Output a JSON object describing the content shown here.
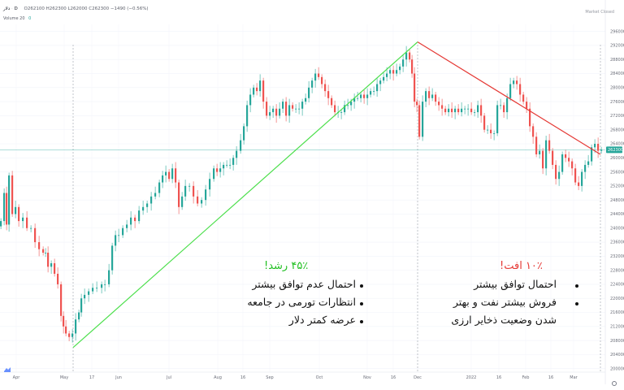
{
  "header": {
    "symbol": "دلار",
    "interval": "D",
    "ohlc": "O262100  H262300  L262000  C262300  −1490 (−0.56%)",
    "volume": "Volume 20",
    "volume_value": "0",
    "market_status": "Market Closed"
  },
  "price_badge": "262300",
  "annotations": {
    "left": {
      "title": "۴۵٪ رشد!",
      "title_color": "#22c022",
      "bullets": [
        "احتمال عدم توافق بیشتر",
        "انتظارات تورمی در جامعه",
        "عرضه کمتر دلار"
      ]
    },
    "right": {
      "title": "۱۰٪ افت!",
      "title_color": "#e53935",
      "bullets": [
        "احتمال توافق بیشتر",
        "فروش بیشتر نفت و بهتر",
        "شدن وضعیت ذخایر ارزی"
      ]
    }
  },
  "chart_data": {
    "type": "candlestick",
    "y_ticks": [
      296000,
      292000,
      288000,
      284000,
      280000,
      276000,
      272000,
      268000,
      264000,
      260000,
      256000,
      252000,
      248000,
      244000,
      240000,
      236000,
      232000,
      228000,
      224000,
      220000,
      216000,
      212000,
      208000,
      204000,
      200000
    ],
    "x_ticks": [
      "Apr",
      "May",
      "17",
      "Jun",
      "Jul",
      "Aug",
      "16",
      "Sep",
      "Oct",
      "Nov",
      "16",
      "Dec",
      "2022",
      "16",
      "Feb",
      "16",
      "Mar"
    ],
    "ylim": [
      199000,
      298000
    ],
    "current_price": 262300,
    "colors": {
      "up": "#26a69a",
      "down": "#ef5350",
      "rise_line": "#4cdf4c",
      "fall_line": "#e53935"
    },
    "rise_trendline": {
      "from_date": "May 2021",
      "from_price": 206000,
      "to_date": "Dec 2021",
      "to_price": 293000
    },
    "fall_trendline": {
      "from_date": "Dec 2021",
      "from_price": 293000,
      "to_date": "Mar 2022",
      "to_price": 261000
    },
    "path": [
      [
        0,
        242000
      ],
      [
        4,
        250000
      ],
      [
        7,
        241000
      ],
      [
        10,
        255000
      ],
      [
        14,
        244000
      ],
      [
        18,
        246000
      ],
      [
        22,
        242000
      ],
      [
        27,
        243000
      ],
      [
        32,
        240000
      ],
      [
        37,
        240000
      ],
      [
        42,
        236000
      ],
      [
        47,
        234000
      ],
      [
        52,
        233000
      ],
      [
        55,
        233000
      ],
      [
        58,
        229000
      ],
      [
        62,
        230000
      ],
      [
        66,
        227000
      ],
      [
        70,
        224000
      ],
      [
        74,
        215000
      ],
      [
        77,
        212000
      ],
      [
        80,
        210000
      ],
      [
        84,
        209000
      ],
      [
        88,
        210000
      ],
      [
        92,
        214000
      ],
      [
        96,
        216000
      ],
      [
        99,
        220000
      ],
      [
        103,
        221000
      ],
      [
        108,
        222000
      ],
      [
        113,
        223000
      ],
      [
        118,
        223000
      ],
      [
        124,
        224000
      ],
      [
        128,
        224000
      ],
      [
        133,
        228000
      ],
      [
        137,
        235000
      ],
      [
        141,
        238000
      ],
      [
        145,
        238000
      ],
      [
        150,
        240000
      ],
      [
        155,
        241000
      ],
      [
        160,
        243000
      ],
      [
        165,
        242000
      ],
      [
        170,
        245000
      ],
      [
        175,
        246000
      ],
      [
        180,
        247000
      ],
      [
        185,
        249000
      ],
      [
        190,
        250000
      ],
      [
        195,
        253000
      ],
      [
        199,
        255000
      ],
      [
        203,
        256000
      ],
      [
        207,
        254000
      ],
      [
        211,
        257000
      ],
      [
        215,
        253000
      ],
      [
        219,
        246000
      ],
      [
        223,
        249000
      ],
      [
        227,
        252000
      ],
      [
        232,
        252000
      ],
      [
        237,
        249000
      ],
      [
        242,
        247000
      ],
      [
        247,
        248000
      ],
      [
        252,
        251000
      ],
      [
        257,
        254000
      ],
      [
        262,
        257000
      ],
      [
        266,
        256000
      ],
      [
        270,
        257000
      ],
      [
        274,
        258000
      ],
      [
        278,
        258000
      ],
      [
        282,
        258000
      ],
      [
        286,
        260000
      ],
      [
        290,
        262000
      ],
      [
        295,
        265000
      ],
      [
        299,
        269000
      ],
      [
        303,
        275000
      ],
      [
        307,
        278000
      ],
      [
        311,
        280000
      ],
      [
        315,
        279000
      ],
      [
        319,
        282000
      ],
      [
        323,
        276000
      ],
      [
        327,
        272000
      ],
      [
        331,
        273000
      ],
      [
        335,
        274000
      ],
      [
        339,
        272000
      ],
      [
        343,
        274000
      ],
      [
        347,
        276000
      ],
      [
        351,
        272000
      ],
      [
        355,
        275000
      ],
      [
        359,
        274000
      ],
      [
        363,
        274000
      ],
      [
        367,
        274000
      ],
      [
        371,
        276000
      ],
      [
        375,
        277000
      ],
      [
        379,
        280000
      ],
      [
        383,
        282000
      ],
      [
        387,
        284000
      ],
      [
        391,
        283000
      ],
      [
        395,
        281000
      ],
      [
        399,
        279000
      ],
      [
        403,
        277000
      ],
      [
        407,
        275000
      ],
      [
        411,
        273000
      ],
      [
        415,
        273000
      ],
      [
        419,
        273000
      ],
      [
        423,
        275000
      ],
      [
        427,
        275000
      ],
      [
        431,
        276000
      ],
      [
        435,
        277000
      ],
      [
        439,
        277000
      ],
      [
        443,
        278000
      ],
      [
        447,
        277000
      ],
      [
        451,
        278000
      ],
      [
        455,
        279000
      ],
      [
        459,
        279000
      ],
      [
        463,
        281000
      ],
      [
        467,
        282000
      ],
      [
        471,
        283000
      ],
      [
        475,
        284000
      ],
      [
        479,
        285000
      ],
      [
        483,
        284000
      ],
      [
        487,
        285000
      ],
      [
        491,
        286000
      ],
      [
        495,
        288000
      ],
      [
        499,
        290000
      ],
      [
        503,
        288000
      ],
      [
        506,
        284000
      ],
      [
        509,
        276000
      ],
      [
        512,
        275000
      ],
      [
        515,
        266000
      ],
      [
        519,
        276000
      ],
      [
        523,
        279000
      ],
      [
        527,
        277000
      ],
      [
        531,
        278000
      ],
      [
        535,
        276000
      ],
      [
        539,
        275000
      ],
      [
        543,
        274000
      ],
      [
        547,
        273000
      ],
      [
        551,
        274000
      ],
      [
        555,
        273000
      ],
      [
        559,
        274000
      ],
      [
        563,
        273000
      ],
      [
        567,
        274000
      ],
      [
        571,
        274000
      ],
      [
        575,
        274000
      ],
      [
        579,
        273000
      ],
      [
        583,
        273000
      ],
      [
        587,
        275000
      ],
      [
        591,
        272000
      ],
      [
        595,
        268000
      ],
      [
        599,
        268000
      ],
      [
        603,
        267000
      ],
      [
        607,
        267000
      ],
      [
        611,
        275000
      ],
      [
        615,
        275000
      ],
      [
        619,
        273000
      ],
      [
        623,
        277000
      ],
      [
        627,
        281000
      ],
      [
        631,
        282000
      ],
      [
        635,
        281000
      ],
      [
        639,
        278000
      ],
      [
        643,
        276000
      ],
      [
        647,
        274000
      ],
      [
        651,
        269000
      ],
      [
        655,
        266000
      ],
      [
        659,
        261000
      ],
      [
        663,
        262000
      ],
      [
        667,
        257000
      ],
      [
        671,
        265000
      ],
      [
        675,
        262000
      ],
      [
        679,
        258000
      ],
      [
        683,
        254000
      ],
      [
        687,
        256000
      ],
      [
        691,
        261000
      ],
      [
        695,
        260000
      ],
      [
        699,
        259000
      ],
      [
        703,
        257000
      ],
      [
        707,
        253000
      ],
      [
        711,
        252000
      ],
      [
        715,
        256000
      ],
      [
        719,
        258000
      ],
      [
        723,
        259000
      ],
      [
        727,
        263000
      ],
      [
        731,
        264000
      ],
      [
        735,
        262000
      ],
      [
        739,
        262300
      ]
    ]
  }
}
